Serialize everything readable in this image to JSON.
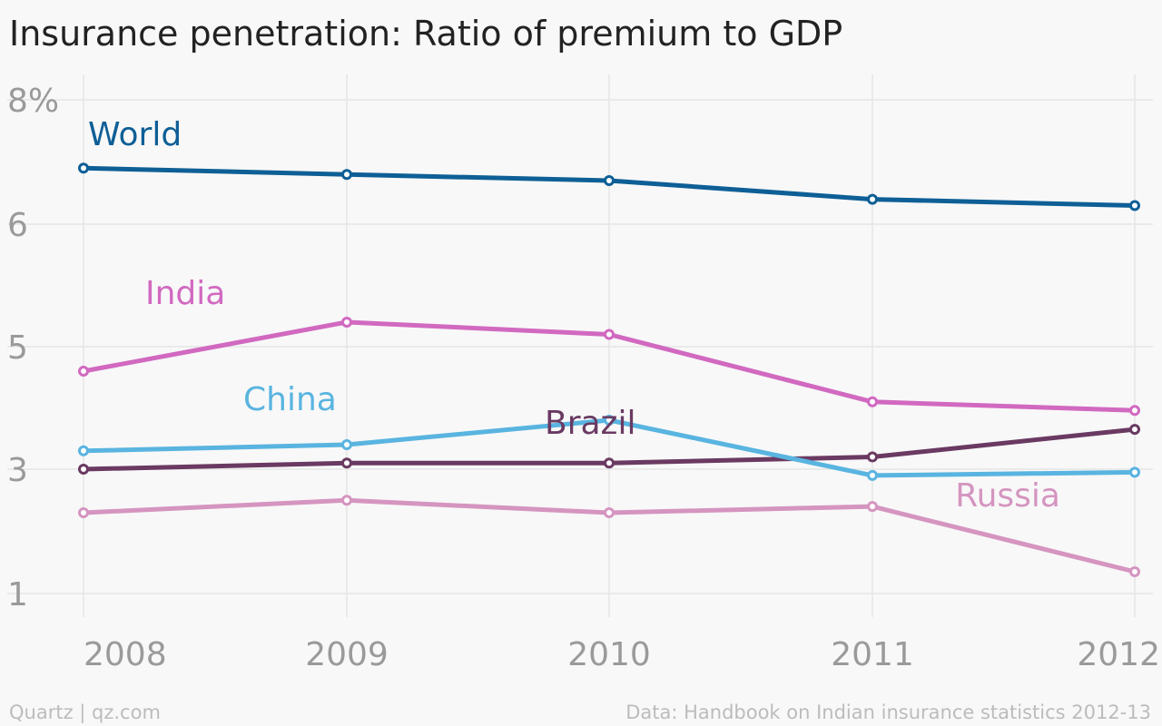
{
  "chart_data": {
    "type": "line",
    "title": "Insurance penetration: Ratio of premium to GDP",
    "x": [
      "2008",
      "2009",
      "2010",
      "2011",
      "2012"
    ],
    "ylim": [
      1,
      8
    ],
    "yticks": [
      "8%",
      "6",
      "5",
      "3",
      "1"
    ],
    "grid": true,
    "series": [
      {
        "name": "World",
        "color": "#0e5f96",
        "values": [
          6.9,
          6.8,
          6.7,
          6.4,
          6.3
        ]
      },
      {
        "name": "India",
        "color": "#d169c0",
        "values": [
          4.6,
          5.2,
          5.1,
          4.1,
          3.96
        ]
      },
      {
        "name": "China",
        "color": "#59b4e0",
        "values": [
          3.3,
          3.4,
          3.8,
          2.9,
          2.95
        ]
      },
      {
        "name": "Brazil",
        "color": "#6a3a62",
        "values": [
          3.0,
          3.1,
          3.1,
          3.2,
          3.65
        ]
      },
      {
        "name": "Russia",
        "color": "#d595c0",
        "values": [
          2.3,
          2.5,
          2.3,
          2.4,
          1.35
        ]
      }
    ]
  },
  "footer": {
    "source_left": "Quartz | qz.com",
    "source_right": "Data: Handbook on Indian insurance statistics 2012-13"
  }
}
